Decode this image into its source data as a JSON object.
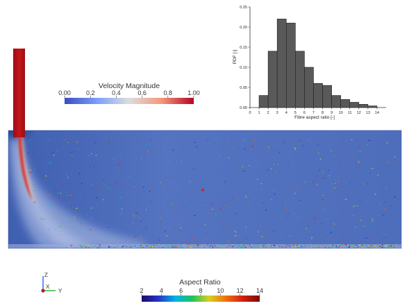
{
  "colors": {
    "background": "#ffffff",
    "velocity_low": "#3b4cc0",
    "velocity_mid": "#dddddd",
    "velocity_high": "#b40426",
    "domain_fill": "#4f6fbd",
    "jet_core": "#c4161c",
    "histogram_bar": "#595959"
  },
  "velocity_legend": {
    "title": "Velocity Magnitude",
    "ticks": [
      "0.00",
      "0.2",
      "0.4",
      "0.6",
      "0.8",
      "1.00"
    ]
  },
  "aspect_legend": {
    "title": "Aspect Ratio",
    "ticks": [
      "2",
      "4",
      "6",
      "8",
      "10",
      "12",
      "14"
    ],
    "colormap": [
      "#1a0a70",
      "#2434c8",
      "#00b4e8",
      "#22c060",
      "#d8d020",
      "#f07010",
      "#d02010",
      "#7a0a0a"
    ]
  },
  "axes_triad": {
    "z_label": "Z",
    "x_label": "X",
    "y_label": "Y"
  },
  "chart_data": {
    "type": "bar",
    "categories": [
      1,
      2,
      3,
      4,
      5,
      6,
      7,
      8,
      9,
      10,
      11,
      12,
      13
    ],
    "values": [
      0.03,
      0.14,
      0.22,
      0.21,
      0.14,
      0.1,
      0.06,
      0.055,
      0.03,
      0.02,
      0.013,
      0.008,
      0.004
    ],
    "title": "",
    "xlabel": "Fibre aspect ratio [-]",
    "ylabel": "PDF [-]",
    "xlim": [
      0,
      15
    ],
    "ylim": [
      0,
      0.25
    ],
    "xticks": [
      "0",
      "1",
      "2",
      "3",
      "4",
      "5",
      "6",
      "7",
      "8",
      "9",
      "10",
      "11",
      "12",
      "13",
      "14"
    ],
    "yticks": [
      "0.00",
      "0.05",
      "0.10",
      "0.15",
      "0.20",
      "0.25"
    ],
    "grid": false
  }
}
